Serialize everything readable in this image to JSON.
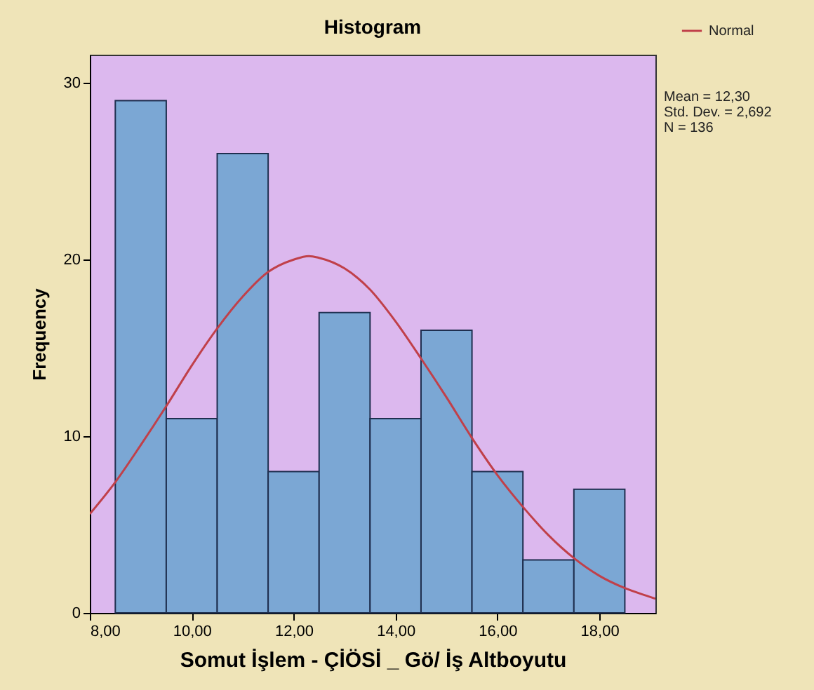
{
  "chart_data": {
    "type": "histogram",
    "title": "Histogram",
    "xlabel": "Somut İşlem - ÇİÖSİ _ Gö/ İş Altboyutu",
    "ylabel": "Frequency",
    "series": [
      {
        "type": "histogram",
        "color": "#7ba7d4",
        "bins": [
          8.5,
          9.5,
          10.5,
          11.5,
          12.5,
          13.5,
          14.5,
          15.5,
          16.5,
          17.5,
          18.5
        ],
        "values": [
          29,
          11,
          26,
          8,
          17,
          11,
          16,
          8,
          3,
          7
        ]
      },
      {
        "type": "line",
        "name": "Normal",
        "color": "#c0404a",
        "x": [
          8,
          8.5,
          9,
          9.5,
          10,
          10.5,
          11,
          11.5,
          12,
          12.3,
          12.5,
          13,
          13.5,
          14,
          14.5,
          15,
          15.5,
          16,
          16.5,
          17,
          17.5,
          18,
          18.5,
          19,
          19.1
        ],
        "values": [
          5.6,
          7.4,
          9.5,
          11.7,
          14.0,
          16.1,
          17.9,
          19.3,
          20.0,
          20.2,
          20.1,
          19.5,
          18.3,
          16.5,
          14.4,
          12.2,
          9.9,
          7.8,
          6.0,
          4.4,
          3.1,
          2.1,
          1.4,
          0.9,
          0.8
        ]
      }
    ],
    "xlim": [
      8,
      19.1
    ],
    "ylim": [
      0,
      31.6
    ],
    "xticks": [
      {
        "value": 8,
        "label": "8,00"
      },
      {
        "value": 10,
        "label": "10,00"
      },
      {
        "value": 12,
        "label": "12,00"
      },
      {
        "value": 14,
        "label": "14,00"
      },
      {
        "value": 16,
        "label": "16,00"
      },
      {
        "value": 18,
        "label": "18,00"
      }
    ],
    "yticks": [
      0,
      10,
      20,
      30
    ],
    "grid": false,
    "legend": "top right",
    "annotations": [
      "Mean = 12,30",
      "Std. Dev. = 2,692",
      "N = 136"
    ]
  }
}
